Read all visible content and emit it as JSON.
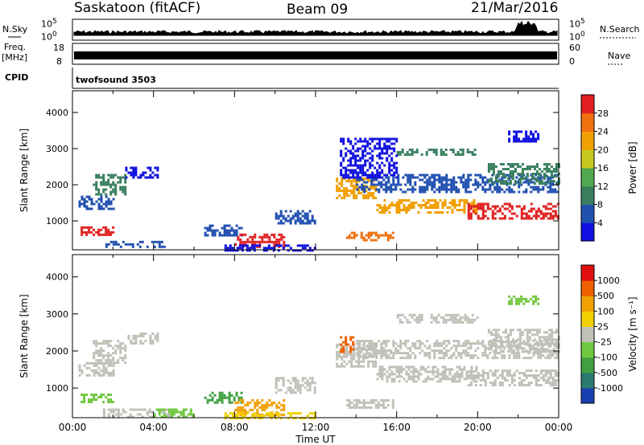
{
  "header": {
    "station": "Saskatoon (fitACF)",
    "beam": "Beam 09",
    "date": "21/Mar/2016"
  },
  "top_panels": {
    "nsky": {
      "label": "N.Sky",
      "scale_top": "10^5",
      "scale_bottom": "10^0"
    },
    "nsearch": {
      "label": "N.Search",
      "scale_top": "10^5",
      "scale_bottom": "10^0"
    },
    "freq": {
      "label_line1": "Freq.",
      "label_line2": "[MHz]",
      "scale_top": "18",
      "scale_bottom": "8"
    },
    "nave": {
      "label": "Nave",
      "scale_top": "60",
      "scale_bottom": "0"
    },
    "cpid": {
      "label": "CPID",
      "value": "twofsound 3503"
    }
  },
  "chart_data": [
    {
      "type": "heatmap",
      "panel": "power",
      "ylabel": "Slant Range [km]",
      "ylim": [
        200,
        4600
      ],
      "yticks": [
        "1000",
        "2000",
        "3000",
        "4000"
      ],
      "xlim": [
        0,
        24
      ],
      "colorbar": {
        "label": "Power [dB]",
        "ticks": [
          "4",
          "8",
          "12",
          "16",
          "20",
          "24",
          "28"
        ],
        "colors": [
          "#1010e0",
          "#2050b0",
          "#3a8060",
          "#50a850",
          "#c8c820",
          "#f0a000",
          "#f07010",
          "#e02020"
        ]
      },
      "bands": [
        {
          "t0": 0.3,
          "t1": 2.0,
          "r0": 1350,
          "r1": 1700,
          "c": "#2050b0"
        },
        {
          "t0": 1.0,
          "t1": 2.6,
          "r0": 1700,
          "r1": 2300,
          "c": "#3a8060"
        },
        {
          "t0": 2.6,
          "t1": 4.2,
          "r0": 2200,
          "r1": 2500,
          "c": "#1010e0"
        },
        {
          "t0": 0.4,
          "t1": 2.0,
          "r0": 600,
          "r1": 850,
          "c": "#e02020"
        },
        {
          "t0": 1.5,
          "t1": 4.5,
          "r0": 300,
          "r1": 450,
          "c": "#2050b0"
        },
        {
          "t0": 6.5,
          "t1": 8.3,
          "r0": 600,
          "r1": 900,
          "c": "#2050b0"
        },
        {
          "t0": 8.0,
          "t1": 10.5,
          "r0": 250,
          "r1": 650,
          "c": "#e02020"
        },
        {
          "t0": 7.5,
          "t1": 12.0,
          "r0": 200,
          "r1": 350,
          "c": "#1010e0"
        },
        {
          "t0": 10.0,
          "t1": 12.0,
          "r0": 900,
          "r1": 1300,
          "c": "#2050b0"
        },
        {
          "t0": 13.0,
          "t1": 15.0,
          "r0": 1600,
          "r1": 2200,
          "c": "#f0a000"
        },
        {
          "t0": 13.5,
          "t1": 15.8,
          "r0": 450,
          "r1": 700,
          "c": "#f07010"
        },
        {
          "t0": 15.0,
          "t1": 20.0,
          "r0": 1200,
          "r1": 1600,
          "c": "#f0a000"
        },
        {
          "t0": 19.5,
          "t1": 24.0,
          "r0": 1050,
          "r1": 1500,
          "c": "#e02020"
        },
        {
          "t0": 14.0,
          "t1": 24.0,
          "r0": 1800,
          "r1": 2300,
          "c": "#2050b0"
        },
        {
          "t0": 16.0,
          "t1": 20.0,
          "r0": 2800,
          "r1": 3000,
          "c": "#3a8060"
        },
        {
          "t0": 20.5,
          "t1": 24.0,
          "r0": 2000,
          "r1": 2600,
          "c": "#3a8060"
        },
        {
          "t0": 21.5,
          "t1": 23.0,
          "r0": 3200,
          "r1": 3500,
          "c": "#1010e0"
        },
        {
          "t0": 13.2,
          "t1": 16.0,
          "r0": 2200,
          "r1": 3300,
          "c": "#1010e0"
        }
      ]
    },
    {
      "type": "heatmap",
      "panel": "velocity",
      "ylabel": "Slant Range [km]",
      "xlabel": "Time UT",
      "ylim": [
        200,
        4600
      ],
      "yticks": [
        "1000",
        "2000",
        "3000",
        "4000"
      ],
      "xlim": [
        0,
        24
      ],
      "xticks": [
        "00:00",
        "04:00",
        "08:00",
        "12:00",
        "16:00",
        "20:00",
        "00:00"
      ],
      "colorbar": {
        "label": "Velocity [m s⁻¹]",
        "ticks": [
          "1000",
          "500",
          "100",
          "25",
          "-25",
          "-100",
          "-500",
          "-1000"
        ],
        "colors": [
          "#1a40b0",
          "#2a7a70",
          "#40a040",
          "#70c840",
          "#c0c0b8",
          "#f0d000",
          "#f0a000",
          "#f06000",
          "#e01010"
        ]
      },
      "bands": [
        {
          "t0": 0.3,
          "t1": 2.0,
          "r0": 1350,
          "r1": 1700,
          "c": "#c0c0b8"
        },
        {
          "t0": 1.0,
          "t1": 2.6,
          "r0": 1700,
          "r1": 2300,
          "c": "#c0c0b8"
        },
        {
          "t0": 2.6,
          "t1": 4.2,
          "r0": 2200,
          "r1": 2500,
          "c": "#c0c0b8"
        },
        {
          "t0": 0.4,
          "t1": 2.0,
          "r0": 600,
          "r1": 850,
          "c": "#70c840"
        },
        {
          "t0": 1.5,
          "t1": 5.0,
          "r0": 250,
          "r1": 450,
          "c": "#c0c0b8"
        },
        {
          "t0": 4.0,
          "t1": 6.0,
          "r0": 200,
          "r1": 450,
          "c": "#70c840"
        },
        {
          "t0": 6.5,
          "t1": 8.3,
          "r0": 600,
          "r1": 900,
          "c": "#40a040"
        },
        {
          "t0": 8.0,
          "t1": 10.5,
          "r0": 250,
          "r1": 700,
          "c": "#f0a000"
        },
        {
          "t0": 7.5,
          "t1": 12.0,
          "r0": 200,
          "r1": 350,
          "c": "#f0d000"
        },
        {
          "t0": 10.0,
          "t1": 12.0,
          "r0": 900,
          "r1": 1300,
          "c": "#c0c0b8"
        },
        {
          "t0": 13.0,
          "t1": 15.0,
          "r0": 1600,
          "r1": 2200,
          "c": "#c0c0b8"
        },
        {
          "t0": 13.2,
          "t1": 13.8,
          "r0": 2000,
          "r1": 2400,
          "c": "#f06000"
        },
        {
          "t0": 13.5,
          "t1": 15.8,
          "r0": 450,
          "r1": 700,
          "c": "#c0c0b8"
        },
        {
          "t0": 15.0,
          "t1": 20.0,
          "r0": 1200,
          "r1": 1600,
          "c": "#c0c0b8"
        },
        {
          "t0": 19.5,
          "t1": 24.0,
          "r0": 1050,
          "r1": 1500,
          "c": "#c0c0b8"
        },
        {
          "t0": 14.0,
          "t1": 24.0,
          "r0": 1800,
          "r1": 2300,
          "c": "#c0c0b8"
        },
        {
          "t0": 16.0,
          "t1": 20.0,
          "r0": 2800,
          "r1": 3000,
          "c": "#c0c0b8"
        },
        {
          "t0": 20.5,
          "t1": 24.0,
          "r0": 2000,
          "r1": 2600,
          "c": "#c0c0b8"
        },
        {
          "t0": 21.5,
          "t1": 23.0,
          "r0": 3300,
          "r1": 3500,
          "c": "#70c840"
        }
      ]
    }
  ]
}
